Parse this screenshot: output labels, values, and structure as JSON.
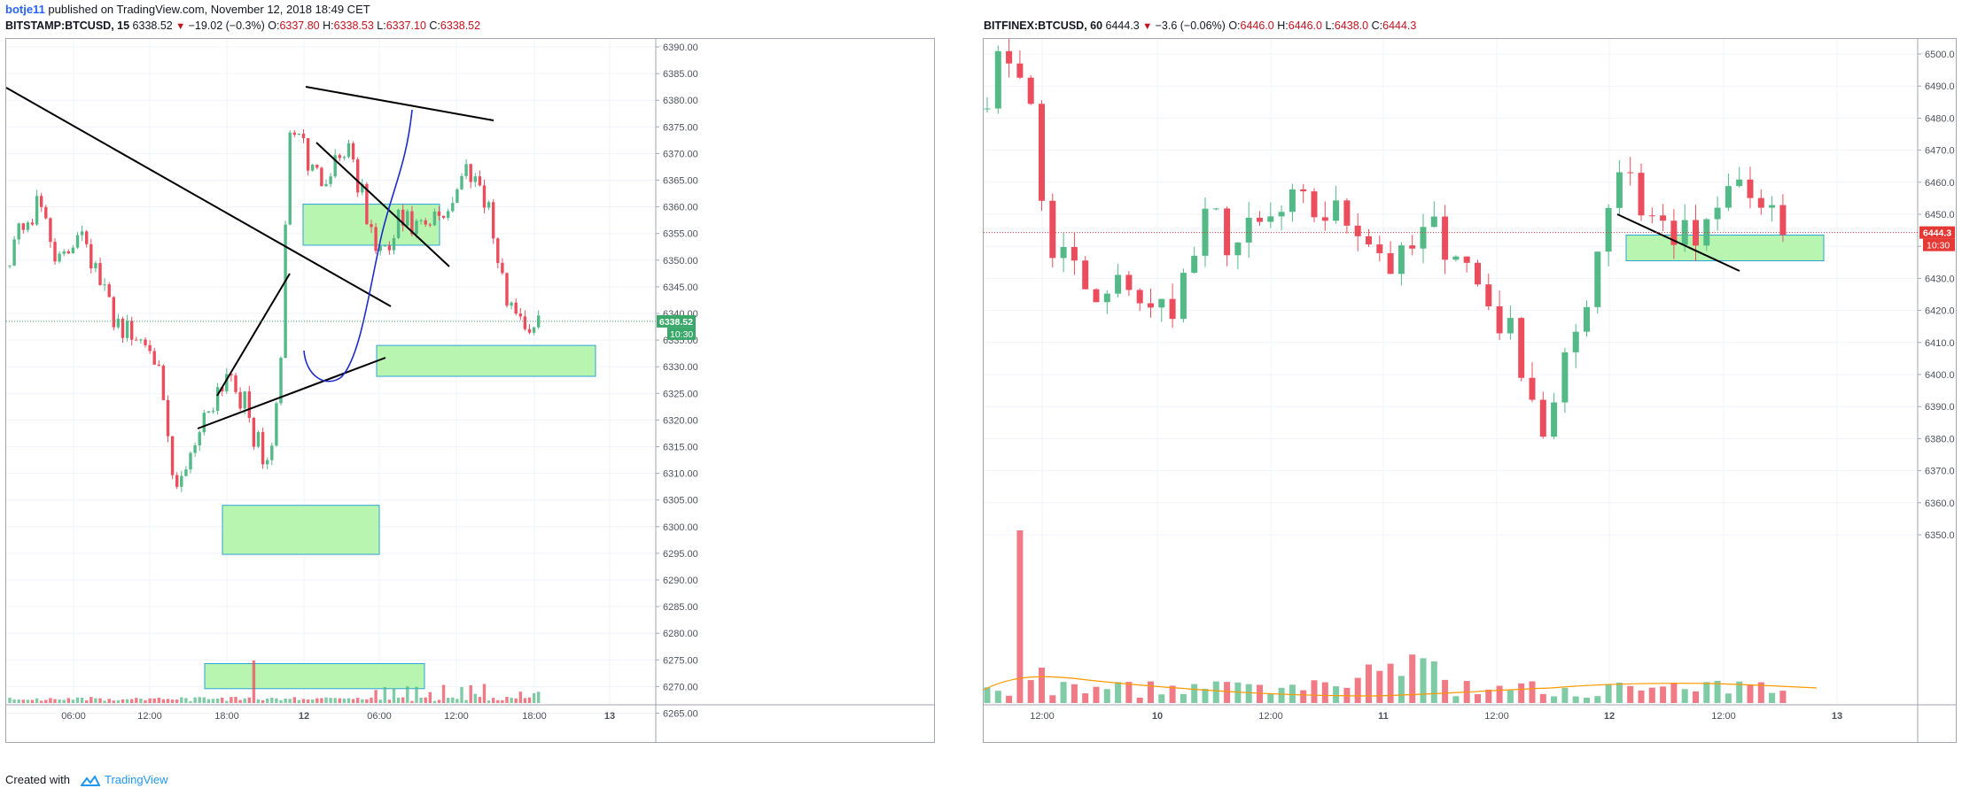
{
  "header": {
    "author": "botje11",
    "published_text": "published on TradingView.com, November 12, 2018 18:49 CET"
  },
  "left_chart": {
    "legend": {
      "symbol": "BITSTAMP:BTCUSD, 15",
      "last": "6338.52",
      "change": "−19.02 (−0.3%)",
      "o_label": "O:",
      "o": "6337.80",
      "h_label": "H:",
      "h": "6338.53",
      "l_label": "L:",
      "l": "6337.10",
      "c_label": "C:",
      "c": "6338.52"
    },
    "price_badge": "6338.52",
    "countdown_badge": "10:30",
    "y_ticks": [
      "6390.00",
      "6385.00",
      "6380.00",
      "6375.00",
      "6370.00",
      "6365.00",
      "6360.00",
      "6355.00",
      "6350.00",
      "6345.00",
      "6340.00",
      "6335.00",
      "6330.00",
      "6325.00",
      "6320.00",
      "6315.00",
      "6310.00",
      "6305.00",
      "6300.00",
      "6295.00",
      "6290.00",
      "6285.00",
      "6280.00",
      "6275.00",
      "6270.00",
      "6265.00"
    ],
    "x_ticks": [
      "06:00",
      "12:00",
      "18:00",
      "12",
      "06:00",
      "12:00",
      "18:00",
      "13"
    ],
    "colors": {
      "up": "#53b987",
      "down": "#eb4d5c",
      "zone_fill": "#b7f5b0",
      "zone_stroke": "#2ea3d6",
      "curve": "#1d2cc9"
    }
  },
  "right_chart": {
    "legend": {
      "symbol": "BITFINEX:BTCUSD, 60",
      "last": "6444.3",
      "change": "−3.6 (−0.06%)",
      "o_label": "O:",
      "o": "6446.0",
      "h_label": "H:",
      "h": "6446.0",
      "l_label": "L:",
      "l": "6438.0",
      "c_label": "C:",
      "c": "6444.3"
    },
    "price_badge": "6444.3",
    "countdown_badge": "10:30",
    "y_ticks": [
      "6500.0",
      "6490.0",
      "6480.0",
      "6470.0",
      "6460.0",
      "6450.0",
      "6440.0",
      "6430.0",
      "6420.0",
      "6410.0",
      "6400.0",
      "6390.0",
      "6380.0",
      "6370.0",
      "6360.0",
      "6350.0"
    ],
    "x_ticks": [
      "12:00",
      "10",
      "12:00",
      "11",
      "12:00",
      "12",
      "12:00",
      "13"
    ]
  },
  "footer": {
    "created_with": "Created with",
    "brand": "TradingView"
  }
}
